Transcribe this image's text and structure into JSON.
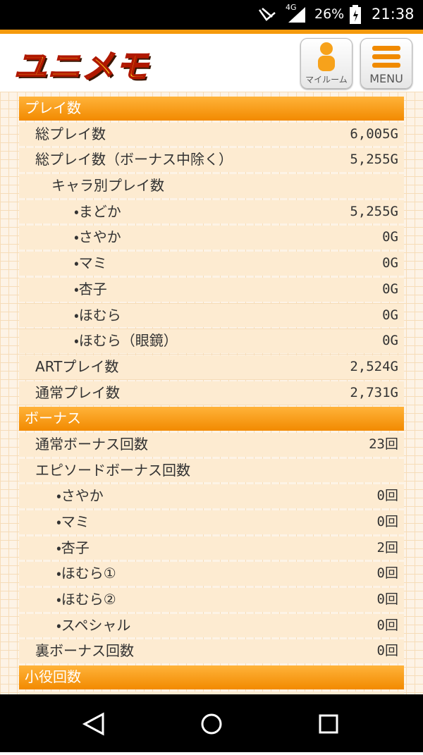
{
  "status_bar": {
    "network": "4G",
    "battery": "26%",
    "time": "21:38"
  },
  "header": {
    "logo": "ユニメモ",
    "my_room": "マイルーム",
    "menu": "MENU"
  },
  "sections": [
    {
      "title": "プレイ数",
      "items": [
        {
          "label": "総プレイ数",
          "value": "6,005G"
        },
        {
          "label": "総プレイ数（ボーナス中除く）",
          "value": "5,255G"
        },
        {
          "label": "キャラ別プレイ数",
          "children": [
            {
              "label": "・まどか",
              "value": "5,255G"
            },
            {
              "label": "・さやか",
              "value": "0G"
            },
            {
              "label": "・マミ",
              "value": "0G"
            },
            {
              "label": "・杏子",
              "value": "0G"
            },
            {
              "label": "・ほむら",
              "value": "0G"
            },
            {
              "label": "・ほむら（眼鏡）",
              "value": "0G"
            }
          ]
        },
        {
          "label": "ARTプレイ数",
          "value": "2,524G"
        },
        {
          "label": "通常プレイ数",
          "value": "2,731G"
        }
      ]
    },
    {
      "title": "ボーナス",
      "items": [
        {
          "label": "通常ボーナス回数",
          "value": "23回"
        },
        {
          "label": "エピソードボーナス回数",
          "children": [
            {
              "label": "・さやか",
              "value": "0回"
            },
            {
              "label": "・マミ",
              "value": "0回"
            },
            {
              "label": "・杏子",
              "value": "2回"
            },
            {
              "label": "・ほむら①",
              "value": "0回"
            },
            {
              "label": "・ほむら②",
              "value": "0回"
            },
            {
              "label": "・スペシャル",
              "value": "0回"
            }
          ]
        },
        {
          "label": "裏ボーナス回数",
          "value": "0回"
        }
      ]
    },
    {
      "title": "小役回数",
      "items": []
    }
  ]
}
